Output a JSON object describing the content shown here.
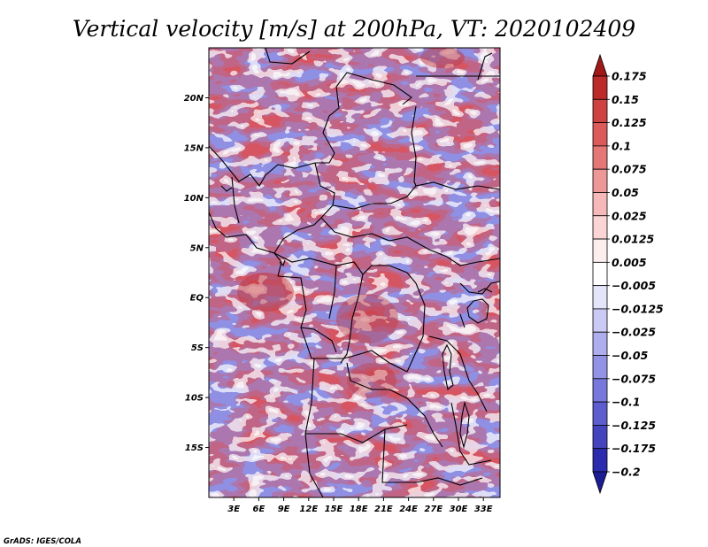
{
  "chart_data": {
    "type": "heatmap",
    "title": "Vertical velocity [m/s] at 200hPa, VT: 2020102409",
    "variable": "Vertical velocity",
    "units": "m/s",
    "level": "200hPa",
    "valid_time": "2020102409",
    "x_ticks": [
      "3E",
      "6E",
      "9E",
      "12E",
      "15E",
      "18E",
      "21E",
      "24E",
      "27E",
      "30E",
      "33E"
    ],
    "x_tick_values": [
      3,
      6,
      9,
      12,
      15,
      18,
      21,
      24,
      27,
      30,
      33
    ],
    "y_ticks": [
      "20N",
      "15N",
      "10N",
      "5N",
      "EQ",
      "5S",
      "10S",
      "15S"
    ],
    "y_tick_values": [
      20,
      15,
      10,
      5,
      0,
      -5,
      -10,
      -15
    ],
    "lon_range": [
      0,
      35
    ],
    "lat_range": [
      -20,
      25
    ],
    "colorbar": {
      "labels": [
        "0.175",
        "0.15",
        "0.125",
        "0.1",
        "0.075",
        "0.05",
        "0.025",
        "0.0125",
        "0.005",
        "−0.005",
        "−0.0125",
        "−0.025",
        "−0.05",
        "−0.075",
        "−0.1",
        "−0.125",
        "−0.175",
        "−0.2"
      ],
      "levels": [
        0.175,
        0.15,
        0.125,
        0.1,
        0.075,
        0.05,
        0.025,
        0.0125,
        0.005,
        -0.005,
        -0.0125,
        -0.025,
        -0.05,
        -0.075,
        -0.1,
        -0.125,
        -0.175,
        -0.2
      ],
      "colors": [
        "#a01818",
        "#bd2a2a",
        "#cf4242",
        "#dc5a5a",
        "#e57777",
        "#ee9797",
        "#f6b8b8",
        "#fbd5d5",
        "#fdeeee",
        "#ffffff",
        "#e4e4fb",
        "#cacaf5",
        "#aeaeee",
        "#9292e6",
        "#7878dc",
        "#5d5dcf",
        "#4444bf",
        "#2b2bb0",
        "#1c1c95"
      ]
    }
  },
  "credit": "GrADS: IGES/COLA"
}
